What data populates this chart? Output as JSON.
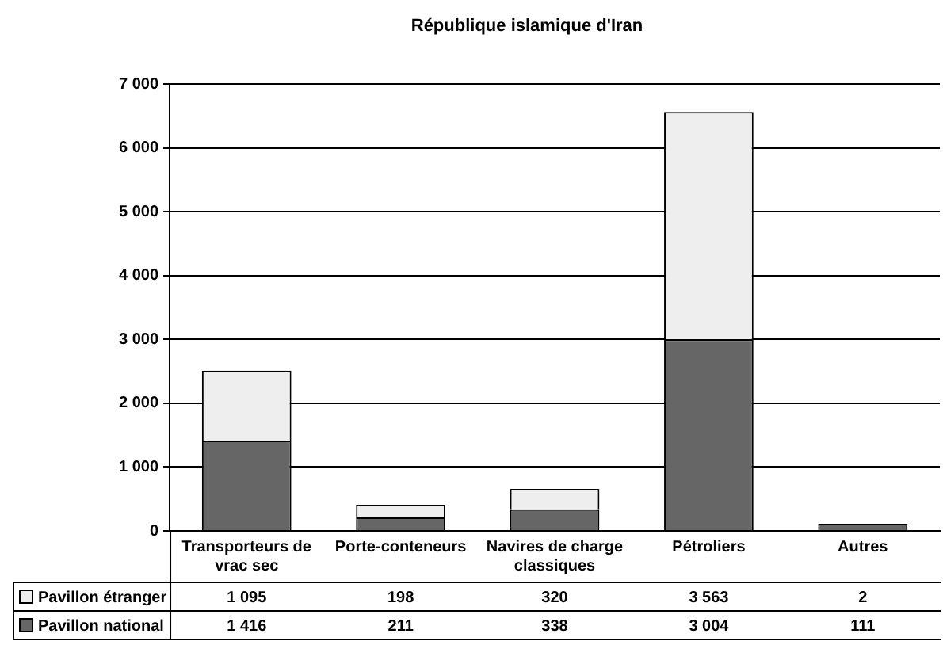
{
  "chart_data": {
    "type": "bar",
    "title": "République islamique d'Iran",
    "categories": [
      "Transporteurs de vrac sec",
      "Porte-conteneurs",
      "Navires de charge classiques",
      "Pétroliers",
      "Autres"
    ],
    "series": [
      {
        "name": "Pavillon national",
        "color": "#666666",
        "values": [
          1416,
          211,
          338,
          3004,
          111
        ]
      },
      {
        "name": "Pavillon étranger",
        "color": "#eeeeee",
        "values": [
          1095,
          198,
          320,
          3563,
          2
        ]
      }
    ],
    "stacked": true,
    "ylim": [
      0,
      7000
    ],
    "yticks": [
      {
        "value": 0,
        "label": "0"
      },
      {
        "value": 1000,
        "label": "1 000"
      },
      {
        "value": 2000,
        "label": "2 000"
      },
      {
        "value": 3000,
        "label": "3 000"
      },
      {
        "value": 4000,
        "label": "4 000"
      },
      {
        "value": 5000,
        "label": "5 000"
      },
      {
        "value": 6000,
        "label": "6 000"
      },
      {
        "value": 7000,
        "label": "7 000"
      }
    ],
    "value_labels": [
      [
        "1 416",
        "211",
        "338",
        "3 004",
        "111"
      ],
      [
        "1 095",
        "198",
        "320",
        "3 563",
        "2"
      ]
    ],
    "grid": "y",
    "legend": "bottom"
  }
}
